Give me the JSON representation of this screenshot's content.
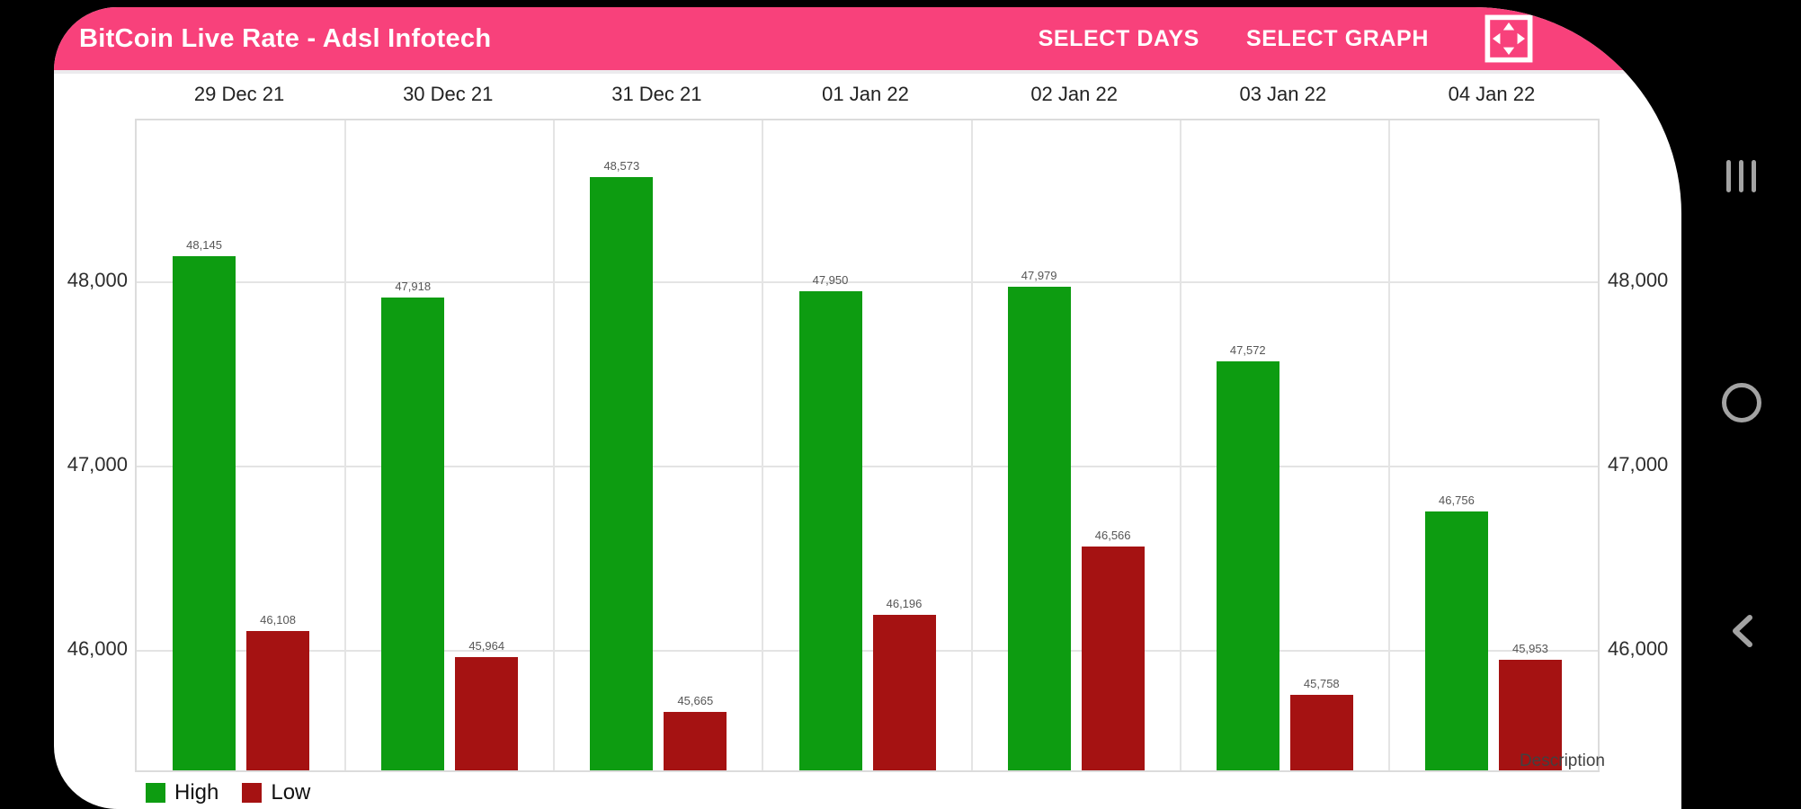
{
  "app": {
    "title": "BitCoin Live Rate - Adsl Infotech",
    "header_color": "#F8417B",
    "menu": [
      {
        "label": "SELECT DAYS"
      },
      {
        "label": "SELECT GRAPH"
      }
    ],
    "icons": {
      "fullscreen": "fullscreen-arrows-icon"
    }
  },
  "chart_data": {
    "type": "bar",
    "title": "",
    "categories": [
      "29 Dec 21",
      "30 Dec 21",
      "31 Dec 21",
      "01 Jan 22",
      "02 Jan 22",
      "03 Jan 22",
      "04 Jan 22"
    ],
    "series": [
      {
        "name": "High",
        "color": "#0D9C11",
        "values": [
          48145,
          47918,
          48573,
          47950,
          47979,
          47572,
          46756
        ]
      },
      {
        "name": "Low",
        "color": "#A51212",
        "values": [
          46108,
          45964,
          45665,
          46196,
          46566,
          45758,
          45953
        ]
      }
    ],
    "y_ticks": [
      46000,
      47000,
      48000
    ],
    "ylim": [
      45350,
      48880
    ],
    "grid": true,
    "legend_position": "bottom-left",
    "value_labels": true,
    "description_label": "Description"
  },
  "android_nav": {
    "icons": [
      {
        "name": "recents-icon"
      },
      {
        "name": "home-icon"
      },
      {
        "name": "back-icon"
      }
    ]
  }
}
